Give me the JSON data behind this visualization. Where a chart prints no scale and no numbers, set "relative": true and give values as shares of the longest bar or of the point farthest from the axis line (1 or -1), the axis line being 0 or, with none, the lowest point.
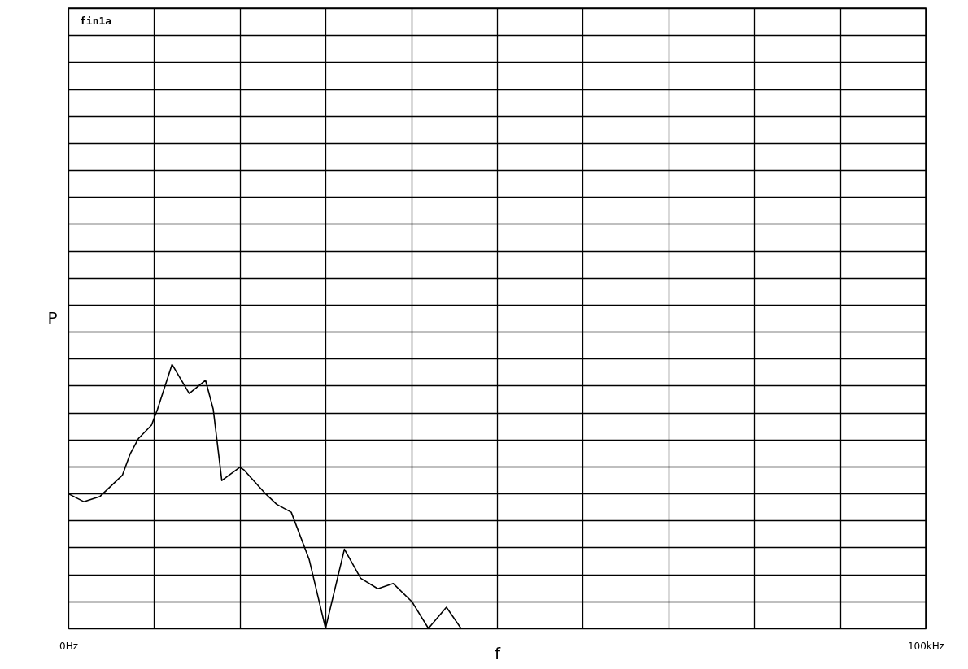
{
  "chart_data": {
    "type": "line",
    "relative": true,
    "xlabel": "f",
    "ylabel": "P",
    "annotations": [
      "fin1a"
    ],
    "x": [
      0,
      1.8,
      3.7,
      5.0,
      6.3,
      7.2,
      8.2,
      9.7,
      10.4,
      12.1,
      14.1,
      16.0,
      16.9,
      17.9,
      20.0,
      20.5,
      23.0,
      24.3,
      26.0,
      28.1,
      30.0,
      32.2,
      34.1,
      36.1,
      37.9,
      40.1,
      42.0,
      44.1,
      45.8
    ],
    "series": [
      {
        "color": "#000000",
        "values": [
          0.51,
          0.48,
          0.5,
          0.54,
          0.58,
          0.66,
          0.72,
          0.77,
          0.83,
          1,
          0.89,
          0.94,
          0.83,
          0.56,
          0.61,
          0.6,
          0.51,
          0.47,
          0.44,
          0.26,
          0,
          0.3,
          0.19,
          0.15,
          0.17,
          0.1,
          0,
          0.08,
          0
        ]
      }
    ],
    "xlim": [
      0,
      100
    ],
    "xticks": [
      {
        "value": 0,
        "label": "0Hz"
      },
      {
        "value": 10,
        "label": null
      },
      {
        "value": 20,
        "label": null
      },
      {
        "value": 30,
        "label": null
      },
      {
        "value": 40,
        "label": null
      },
      {
        "value": 50,
        "label": null
      },
      {
        "value": 60,
        "label": null
      },
      {
        "value": 70,
        "label": null
      },
      {
        "value": 80,
        "label": null
      },
      {
        "value": 90,
        "label": null
      },
      {
        "value": 100,
        "label": "100kHz"
      }
    ],
    "grid": true,
    "marker": "none",
    "line_style": "solid"
  }
}
